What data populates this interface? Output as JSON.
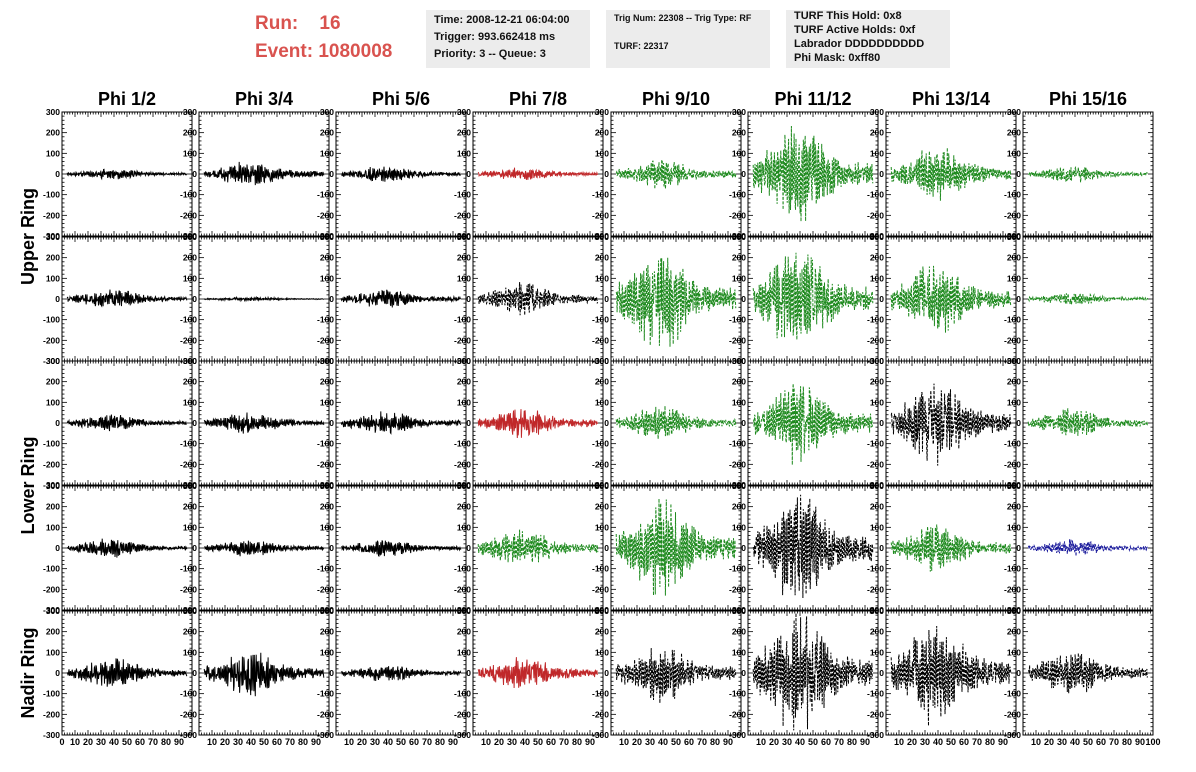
{
  "header": {
    "run_label": "Run:",
    "run_value": "16",
    "event_label": "Event:",
    "event_value": "1080008",
    "time_line": "Time: 2008-12-21 06:04:00",
    "trigger_line": "Trigger: 993.662418 ms",
    "priority_line": "Priority: 3 -- Queue: 3",
    "trig_num_line": "Trig Num: 22308 -- Trig Type: RF",
    "turf_line": "TURF: 22317",
    "turf_hold_line": "TURF This Hold: 0x8",
    "turf_active_line": "TURF Active Holds: 0xf",
    "labrador_line": "Labrador DDDDDDDDDD",
    "phi_mask_line": "Phi Mask: 0xff80"
  },
  "columns": [
    "Phi 1/2",
    "Phi 3/4",
    "Phi 5/6",
    "Phi 7/8",
    "Phi 9/10",
    "Phi 11/12",
    "Phi 13/14",
    "Phi 15/16"
  ],
  "ring_labels": [
    {
      "text": "Upper Ring",
      "spans_rows": [
        0,
        1
      ]
    },
    {
      "text": "Lower Ring",
      "spans_rows": [
        2,
        3
      ]
    },
    {
      "text": "Nadir Ring",
      "spans_rows": [
        4
      ]
    }
  ],
  "y_ticks": [
    "300",
    "200",
    "100",
    "0",
    "-100",
    "-200",
    "-300"
  ],
  "x_ticks": {
    "first_panel": [
      "0",
      "10",
      "20",
      "30",
      "40",
      "50",
      "60",
      "70",
      "80",
      "90"
    ],
    "other_panels": [
      "10",
      "20",
      "30",
      "40",
      "50",
      "60",
      "70",
      "80",
      "90"
    ],
    "last_label": "100"
  },
  "colors": {
    "black": "#000000",
    "red": "#c0282a",
    "green": "#1e8a1e",
    "blue": "#1c1c9c",
    "run_text": "#d9534f",
    "info_bg": "#ececec"
  },
  "chart_data": {
    "type": "line",
    "xlim": [
      0,
      100
    ],
    "ylim": [
      -300,
      300
    ],
    "panels": [
      [
        {
          "color": "black",
          "style": "solid",
          "amplitude": 25
        },
        {
          "color": "black",
          "style": "solid",
          "amplitude": 60
        },
        {
          "color": "black",
          "style": "solid",
          "amplitude": 40
        },
        {
          "color": "red",
          "style": "solid",
          "amplitude": 30
        },
        {
          "color": "green",
          "style": "dashed",
          "amplitude": 70
        },
        {
          "color": "green",
          "style": "dashed",
          "amplitude": 240
        },
        {
          "color": "green",
          "style": "dashed",
          "amplitude": 140
        },
        {
          "color": "green",
          "style": "dashed",
          "amplitude": 40
        }
      ],
      [
        {
          "color": "black",
          "style": "solid",
          "amplitude": 45
        },
        {
          "color": "black",
          "style": "solid",
          "amplitude": 10
        },
        {
          "color": "black",
          "style": "solid",
          "amplitude": 45
        },
        {
          "color": "black",
          "style": "dashed",
          "amplitude": 80
        },
        {
          "color": "green",
          "style": "dashed",
          "amplitude": 240
        },
        {
          "color": "green",
          "style": "dashed",
          "amplitude": 250
        },
        {
          "color": "green",
          "style": "dashed",
          "amplitude": 170
        },
        {
          "color": "green",
          "style": "dashed",
          "amplitude": 30
        }
      ],
      [
        {
          "color": "black",
          "style": "solid",
          "amplitude": 40
        },
        {
          "color": "black",
          "style": "solid",
          "amplitude": 50
        },
        {
          "color": "black",
          "style": "solid",
          "amplitude": 55
        },
        {
          "color": "red",
          "style": "solid",
          "amplitude": 70
        },
        {
          "color": "green",
          "style": "dashed",
          "amplitude": 80
        },
        {
          "color": "green",
          "style": "dashed",
          "amplitude": 200
        },
        {
          "color": "black",
          "style": "dashed",
          "amplitude": 200
        },
        {
          "color": "green",
          "style": "dashed",
          "amplitude": 70
        }
      ],
      [
        {
          "color": "black",
          "style": "solid",
          "amplitude": 45
        },
        {
          "color": "black",
          "style": "solid",
          "amplitude": 40
        },
        {
          "color": "black",
          "style": "solid",
          "amplitude": 40
        },
        {
          "color": "green",
          "style": "dashed",
          "amplitude": 90
        },
        {
          "color": "green",
          "style": "dashed",
          "amplitude": 230
        },
        {
          "color": "black",
          "style": "dashed",
          "amplitude": 270
        },
        {
          "color": "green",
          "style": "dashed",
          "amplitude": 110
        },
        {
          "color": "blue",
          "style": "dashed",
          "amplitude": 40
        }
      ],
      [
        {
          "color": "black",
          "style": "solid",
          "amplitude": 70
        },
        {
          "color": "black",
          "style": "solid",
          "amplitude": 110
        },
        {
          "color": "black",
          "style": "solid",
          "amplitude": 40
        },
        {
          "color": "red",
          "style": "solid",
          "amplitude": 80
        },
        {
          "color": "black",
          "style": "dashed",
          "amplitude": 140
        },
        {
          "color": "black",
          "style": "dashed",
          "amplitude": 290
        },
        {
          "color": "black",
          "style": "dashed",
          "amplitude": 250
        },
        {
          "color": "black",
          "style": "dashed",
          "amplitude": 110
        }
      ]
    ]
  }
}
